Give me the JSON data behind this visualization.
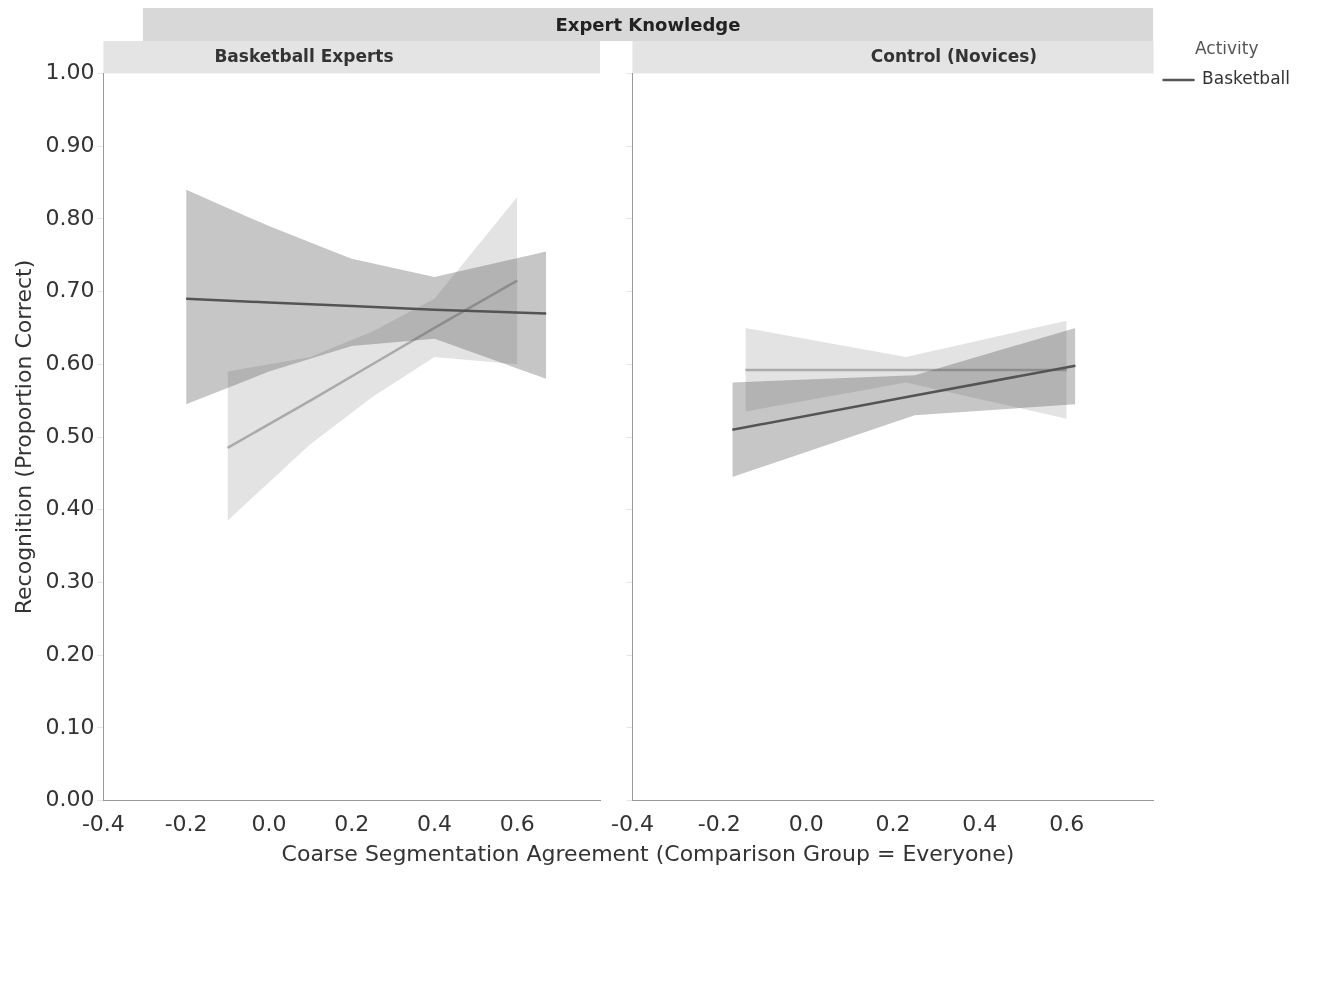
{
  "chart_data": [
    {
      "type": "line",
      "title": "Expert Knowledge",
      "subtitle": "Basketball Experts",
      "xlabel": "Coarse Segmentation Agreement (Comparison Group = Everyone)",
      "ylabel": "Recognition (Proportion Correct)",
      "xlim": [
        -0.4,
        0.8
      ],
      "xticks": [
        -0.4,
        -0.2,
        {
          "value": 0,
          "label": "0.0"
        },
        0.2,
        0.4,
        0.6
      ],
      "ylim": [
        0,
        1
      ],
      "yticks": [
        {
          "value": 0,
          "label": "0.00"
        },
        {
          "value": 0.1,
          "label": "0.10"
        },
        {
          "value": 0.2,
          "label": "0.20"
        },
        {
          "value": 0.3,
          "label": "0.30"
        },
        {
          "value": 0.4,
          "label": "0.40"
        },
        {
          "value": 0.5,
          "label": "0.50"
        },
        {
          "value": 0.6,
          "label": "0.60"
        },
        {
          "value": 0.7,
          "label": "0.70"
        },
        {
          "value": 0.8,
          "label": "0.80"
        },
        {
          "value": 0.9,
          "label": "0.90"
        },
        {
          "value": 1,
          "label": "1.00"
        }
      ],
      "marker": "none",
      "series": [
        {
          "color": "#555555",
          "x": [
            -0.2,
            0,
            0.2,
            0.4,
            0.67
          ],
          "values": [
            0.69,
            0.685,
            0.68,
            0.675,
            0.67
          ],
          "lower": [
            0.545,
            0.59,
            0.625,
            0.635,
            0.58
          ],
          "upper": [
            0.84,
            0.79,
            0.745,
            0.72,
            0.755
          ]
        },
        {
          "color": "#aaaaaa",
          "x": [
            -0.1,
            0.1,
            0.25,
            0.4,
            0.6
          ],
          "values": [
            0.485,
            0.55,
            0.6,
            0.65,
            0.715
          ],
          "lower": [
            0.385,
            0.49,
            0.555,
            0.61,
            0.6
          ],
          "upper": [
            0.59,
            0.61,
            0.645,
            0.69,
            0.83
          ]
        }
      ]
    },
    {
      "type": "line",
      "subtitle": "Control (Novices)",
      "xlim": [
        -0.4,
        0.8
      ],
      "xticks": [
        -0.4,
        -0.2,
        {
          "value": 0,
          "label": "0.0"
        },
        0.2,
        0.4,
        0.6
      ],
      "ylim": [
        0,
        1
      ],
      "yticks": [
        0,
        0.1,
        0.2,
        0.3,
        0.4,
        0.5,
        0.6,
        0.7,
        0.8,
        0.9,
        1
      ],
      "tick_labels": "x",
      "marker": "none",
      "legend": "top right",
      "legend_title": "Activity",
      "series": [
        {
          "name": "Basketball",
          "color": "#555555",
          "x": [
            -0.17,
            0.25,
            0.62
          ],
          "values": [
            0.51,
            0.557,
            0.598
          ],
          "lower": [
            0.445,
            0.53,
            0.545
          ],
          "upper": [
            0.575,
            0.585,
            0.65
          ]
        },
        {
          "color": "#aaaaaa",
          "x": [
            -0.14,
            0.23,
            0.6
          ],
          "values": [
            0.592,
            0.592,
            0.592
          ],
          "lower": [
            0.535,
            0.575,
            0.525
          ],
          "upper": [
            0.65,
            0.61,
            0.66
          ]
        }
      ]
    }
  ]
}
